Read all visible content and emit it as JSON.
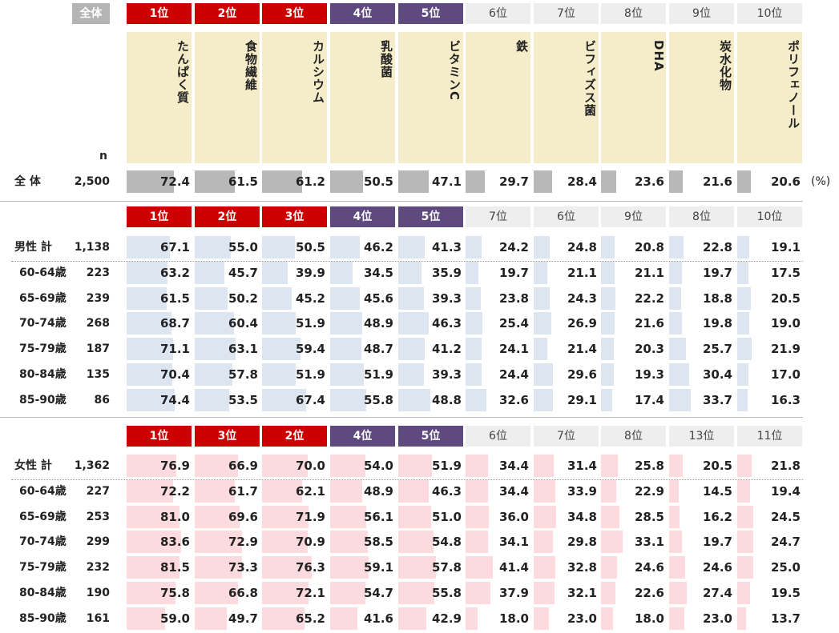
{
  "header": {
    "overall_tag": "全体",
    "n_label": "n",
    "unit": "(%)",
    "categories": [
      "たんぱく質",
      "食物繊維",
      "カルシウム",
      "乳酸菌",
      "ビタミンC",
      "鉄",
      "ビフィズス菌",
      "DHA",
      "炭水化物",
      "ポリフェノール"
    ],
    "overall_ranks": [
      "1位",
      "2位",
      "3位",
      "4位",
      "5位",
      "6位",
      "7位",
      "8位",
      "9位",
      "10位"
    ]
  },
  "colors": {
    "rank_red": "#cc0000",
    "rank_purple": "#5e4a7e",
    "overall_bar": "#b8b8b8",
    "male_bar": "#dde6f0",
    "female_bar": "#fcdadd",
    "category_bg": "#f5ecc9"
  },
  "chart_data": {
    "type": "table",
    "columns": [
      "たんぱく質",
      "食物繊維",
      "カルシウム",
      "乳酸菌",
      "ビタミンC",
      "鉄",
      "ビフィズス菌",
      "DHA",
      "炭水化物",
      "ポリフェノール"
    ],
    "overall": {
      "label": "全 体",
      "n": "2,500",
      "values": [
        72.4,
        61.5,
        61.2,
        50.5,
        47.1,
        29.7,
        28.4,
        23.6,
        21.6,
        20.6
      ]
    },
    "male": {
      "ranks": [
        "1位",
        "2位",
        "3位",
        "4位",
        "5位",
        "7位",
        "6位",
        "9位",
        "8位",
        "10位"
      ],
      "rows": [
        {
          "label": "男性 計",
          "n": "1,138",
          "values": [
            67.1,
            55.0,
            50.5,
            46.2,
            41.3,
            24.2,
            24.8,
            20.8,
            22.8,
            19.1
          ]
        },
        {
          "label": "60-64歳",
          "n": "223",
          "values": [
            63.2,
            45.7,
            39.9,
            34.5,
            35.9,
            19.7,
            21.1,
            21.1,
            19.7,
            17.5
          ]
        },
        {
          "label": "65-69歳",
          "n": "239",
          "values": [
            61.5,
            50.2,
            45.2,
            45.6,
            39.3,
            23.8,
            24.3,
            22.2,
            18.8,
            20.5
          ]
        },
        {
          "label": "70-74歳",
          "n": "268",
          "values": [
            68.7,
            60.4,
            51.9,
            48.9,
            46.3,
            25.4,
            26.9,
            21.6,
            19.8,
            19.0
          ]
        },
        {
          "label": "75-79歳",
          "n": "187",
          "values": [
            71.1,
            63.1,
            59.4,
            48.7,
            41.2,
            24.1,
            21.4,
            20.3,
            25.7,
            21.9
          ]
        },
        {
          "label": "80-84歳",
          "n": "135",
          "values": [
            70.4,
            57.8,
            51.9,
            51.9,
            39.3,
            24.4,
            29.6,
            19.3,
            30.4,
            17.0
          ]
        },
        {
          "label": "85-90歳",
          "n": "86",
          "values": [
            74.4,
            53.5,
            67.4,
            55.8,
            48.8,
            32.6,
            29.1,
            17.4,
            33.7,
            16.3
          ]
        }
      ]
    },
    "female": {
      "ranks": [
        "1位",
        "3位",
        "2位",
        "4位",
        "5位",
        "6位",
        "7位",
        "8位",
        "13位",
        "11位"
      ],
      "rows": [
        {
          "label": "女性 計",
          "n": "1,362",
          "values": [
            76.9,
            66.9,
            70.0,
            54.0,
            51.9,
            34.4,
            31.4,
            25.8,
            20.5,
            21.8
          ]
        },
        {
          "label": "60-64歳",
          "n": "227",
          "values": [
            72.2,
            61.7,
            62.1,
            48.9,
            46.3,
            34.4,
            33.9,
            22.9,
            14.5,
            19.4
          ]
        },
        {
          "label": "65-69歳",
          "n": "253",
          "values": [
            81.0,
            69.6,
            71.9,
            56.1,
            51.0,
            36.0,
            34.8,
            28.5,
            16.2,
            24.5
          ]
        },
        {
          "label": "70-74歳",
          "n": "299",
          "values": [
            83.6,
            72.9,
            70.9,
            58.5,
            54.8,
            34.1,
            29.8,
            33.1,
            19.7,
            24.7
          ]
        },
        {
          "label": "75-79歳",
          "n": "232",
          "values": [
            81.5,
            73.3,
            76.3,
            59.1,
            57.8,
            41.4,
            32.8,
            24.6,
            24.6,
            25.0
          ]
        },
        {
          "label": "80-84歳",
          "n": "190",
          "values": [
            75.8,
            66.8,
            72.1,
            54.7,
            55.8,
            37.9,
            32.1,
            22.6,
            27.4,
            19.5
          ]
        },
        {
          "label": "85-90歳",
          "n": "161",
          "values": [
            59.0,
            49.7,
            65.2,
            41.6,
            42.9,
            18.0,
            23.0,
            18.0,
            23.0,
            13.7
          ]
        }
      ]
    }
  }
}
